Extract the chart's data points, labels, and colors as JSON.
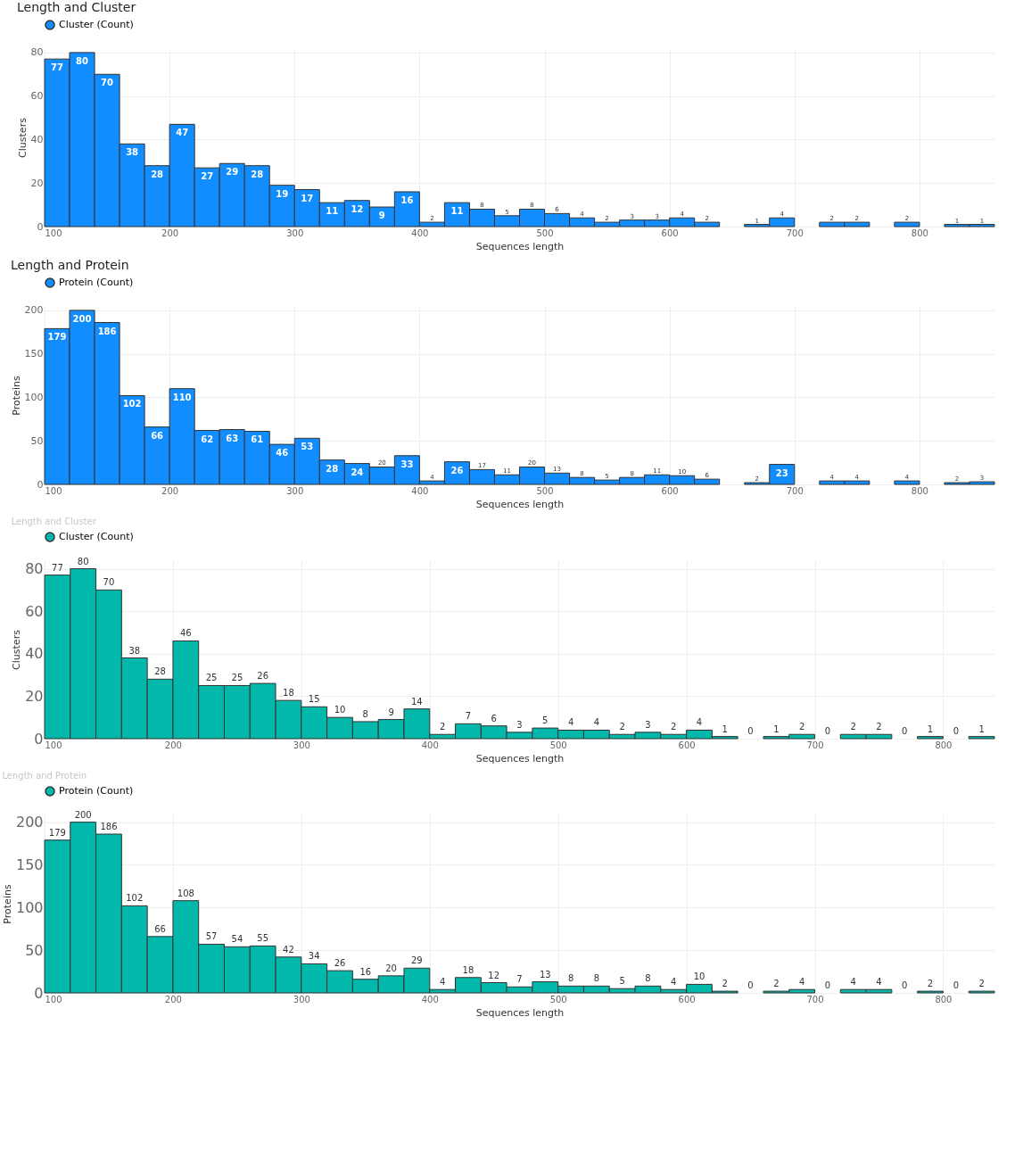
{
  "chart_data": [
    {
      "type": "histogram",
      "title": "Length and Cluster",
      "xlabel": "Sequences length",
      "ylabel": "Clusters",
      "legend": "top left",
      "grid": true,
      "data_labels": true,
      "bins": [
        100,
        120,
        140,
        160,
        180,
        200,
        220,
        240,
        260,
        280,
        300,
        320,
        340,
        360,
        380,
        400,
        420,
        440,
        460,
        480,
        500,
        520,
        540,
        560,
        580,
        600,
        620,
        640,
        660,
        680,
        700,
        720,
        740,
        760,
        780,
        800,
        820,
        840,
        860
      ],
      "series": [
        {
          "name": "Cluster (Count)",
          "color": "#118dff",
          "values": [
            77,
            80,
            70,
            38,
            28,
            47,
            27,
            29,
            28,
            19,
            17,
            11,
            12,
            9,
            16,
            2,
            11,
            8,
            5,
            8,
            6,
            4,
            2,
            3,
            3,
            4,
            2,
            null,
            1,
            4,
            null,
            2,
            2,
            null,
            2,
            null,
            1,
            1
          ]
        }
      ],
      "xlim": [
        100,
        860
      ],
      "xticks": [
        100,
        200,
        300,
        400,
        500,
        600,
        700,
        800
      ],
      "ylim": [
        0,
        82
      ],
      "yticks": [
        0,
        20,
        40,
        60,
        80
      ]
    },
    {
      "type": "histogram",
      "title": "Length and Protein",
      "xlabel": "Sequences length",
      "ylabel": "Proteins",
      "legend": "top left",
      "grid": true,
      "data_labels": true,
      "bins": [
        100,
        120,
        140,
        160,
        180,
        200,
        220,
        240,
        260,
        280,
        300,
        320,
        340,
        360,
        380,
        400,
        420,
        440,
        460,
        480,
        500,
        520,
        540,
        560,
        580,
        600,
        620,
        640,
        660,
        680,
        700,
        720,
        740,
        760,
        780,
        800,
        820,
        840,
        860
      ],
      "series": [
        {
          "name": "Protein (Count)",
          "color": "#118dff",
          "values": [
            179,
            200,
            186,
            102,
            66,
            110,
            62,
            63,
            61,
            46,
            53,
            28,
            24,
            20,
            33,
            4,
            26,
            17,
            11,
            20,
            13,
            8,
            5,
            8,
            11,
            10,
            6,
            null,
            2,
            23,
            null,
            4,
            4,
            null,
            4,
            null,
            2,
            3
          ]
        }
      ],
      "xlim": [
        100,
        860
      ],
      "xticks": [
        100,
        200,
        300,
        400,
        500,
        600,
        700,
        800
      ],
      "ylim": [
        0,
        205
      ],
      "yticks": [
        0,
        50,
        100,
        150,
        200
      ]
    },
    {
      "type": "histogram",
      "title": "Length and Cluster",
      "xlabel": "Sequences length",
      "ylabel": "Clusters",
      "legend": "top left",
      "grid": true,
      "data_labels": true,
      "bins": [
        100,
        120,
        140,
        160,
        180,
        200,
        220,
        240,
        260,
        280,
        300,
        320,
        340,
        360,
        380,
        400,
        420,
        440,
        460,
        480,
        500,
        520,
        540,
        560,
        580,
        600,
        620,
        640,
        660,
        680,
        700,
        720,
        740,
        760,
        780,
        800,
        820,
        840
      ],
      "series": [
        {
          "name": "Cluster (Count)",
          "color": "#01b8aa",
          "values": [
            77,
            80,
            70,
            38,
            28,
            46,
            25,
            25,
            26,
            18,
            15,
            10,
            8,
            9,
            14,
            2,
            7,
            6,
            3,
            5,
            4,
            4,
            2,
            3,
            2,
            4,
            1,
            0,
            1,
            2,
            0,
            2,
            2,
            0,
            1,
            0,
            1
          ]
        }
      ],
      "xlim": [
        100,
        840
      ],
      "xticks": [
        100,
        200,
        300,
        400,
        500,
        600,
        700,
        800
      ],
      "ylim": [
        0,
        84
      ],
      "yticks": [
        0,
        20,
        40,
        60,
        80
      ]
    },
    {
      "type": "histogram",
      "title": "Length and Protein",
      "xlabel": "Sequences length",
      "ylabel": "Proteins",
      "legend": "top left",
      "grid": true,
      "data_labels": true,
      "bins": [
        100,
        120,
        140,
        160,
        180,
        200,
        220,
        240,
        260,
        280,
        300,
        320,
        340,
        360,
        380,
        400,
        420,
        440,
        460,
        480,
        500,
        520,
        540,
        560,
        580,
        600,
        620,
        640,
        660,
        680,
        700,
        720,
        740,
        760,
        780,
        800,
        820,
        840
      ],
      "series": [
        {
          "name": "Protein (Count)",
          "color": "#01b8aa",
          "values": [
            179,
            200,
            186,
            102,
            66,
            108,
            57,
            54,
            55,
            42,
            34,
            26,
            16,
            20,
            29,
            4,
            18,
            12,
            7,
            13,
            8,
            8,
            5,
            8,
            4,
            10,
            2,
            0,
            2,
            4,
            0,
            4,
            4,
            0,
            2,
            0,
            2
          ]
        }
      ],
      "xlim": [
        100,
        840
      ],
      "xticks": [
        100,
        200,
        300,
        400,
        500,
        600,
        700,
        800
      ],
      "ylim": [
        0,
        209
      ],
      "yticks": [
        0,
        50,
        100,
        150,
        200
      ]
    }
  ]
}
